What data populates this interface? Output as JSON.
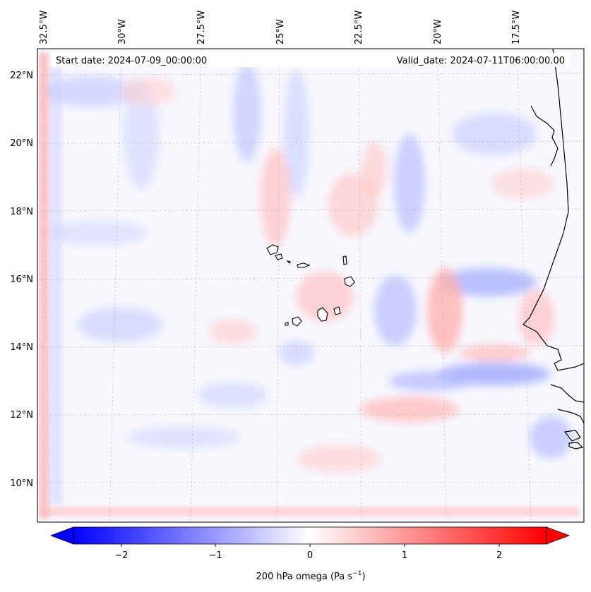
{
  "map": {
    "start_label": "Start date: 2024-07-09_00:00:00",
    "valid_label": "Valid_date: 2024-07-11T06:00:00.00",
    "lon_labels": [
      "32.5°W",
      "30°W",
      "27.5°W",
      "25°W",
      "22.5°W",
      "20°W",
      "17.5°W"
    ],
    "lat_labels": [
      "22°N",
      "20°N",
      "18°N",
      "16°N",
      "14°N",
      "12°N",
      "10°N"
    ],
    "colormap": "bwr",
    "colors": {
      "negative": "#0000ff",
      "zero": "#ffffff",
      "positive": "#ff0000",
      "coast": "#000000",
      "grid": "#b0b0b0"
    }
  },
  "colorbar": {
    "label_main": "200 hPa omega (Pa s",
    "label_exp": "−1",
    "label_close": ")",
    "ticks": [
      "−2",
      "−1",
      "0",
      "1",
      "2"
    ],
    "tick_values": [
      -2,
      -1,
      0,
      1,
      2
    ],
    "range": [
      -2.5,
      2.5
    ],
    "extend": "both"
  }
}
